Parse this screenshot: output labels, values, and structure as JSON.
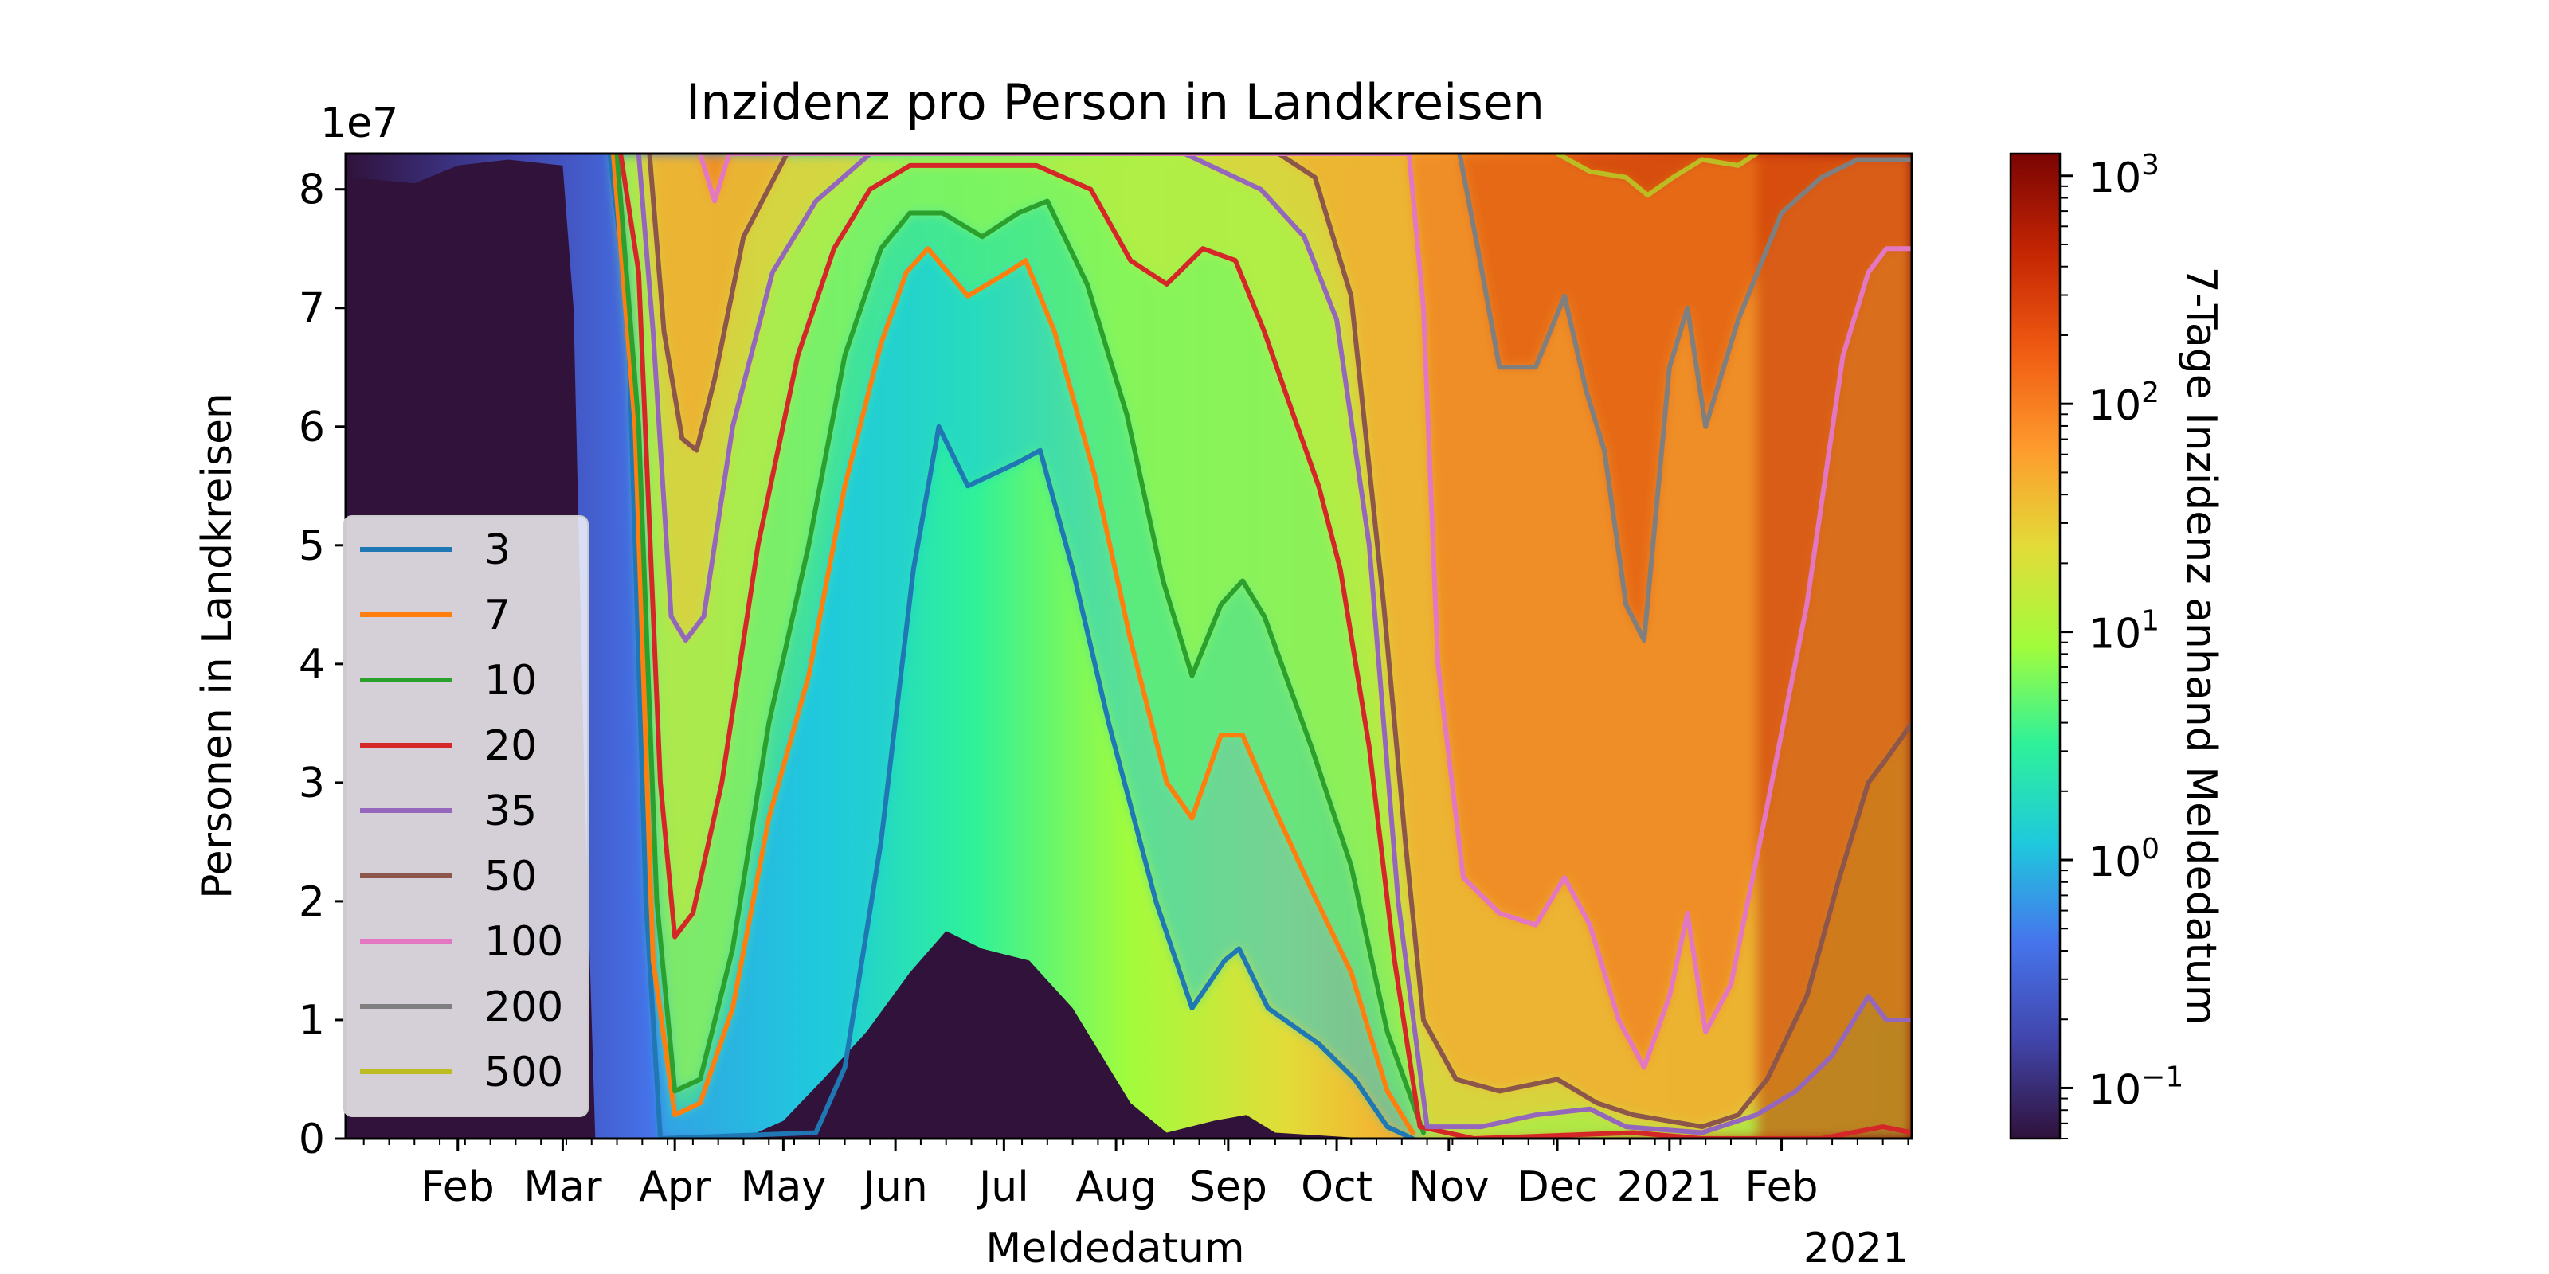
{
  "chart_data": {
    "type": "heatmap",
    "title": "Inzidenz pro Person in Landkreisen",
    "xlabel": "Meldedatum",
    "ylabel": "Personen in Landkreisen",
    "y_offset_text": "1e7",
    "x_year_label": "2021",
    "x_range": [
      "2020-01-01",
      "2021-03-09"
    ],
    "ylim": [
      0,
      8.3
    ],
    "y_ticks": [
      0,
      1,
      2,
      3,
      4,
      5,
      6,
      7,
      8
    ],
    "y_tick_labels": [
      "0",
      "1",
      "2",
      "3",
      "4",
      "5",
      "6",
      "7",
      "8"
    ],
    "x_ticks": [
      {
        "date": "2020-02-01",
        "label": "Feb"
      },
      {
        "date": "2020-03-01",
        "label": "Mar"
      },
      {
        "date": "2020-04-01",
        "label": "Apr"
      },
      {
        "date": "2020-05-01",
        "label": "May"
      },
      {
        "date": "2020-06-01",
        "label": "Jun"
      },
      {
        "date": "2020-07-01",
        "label": "Jul"
      },
      {
        "date": "2020-08-01",
        "label": "Aug"
      },
      {
        "date": "2020-09-01",
        "label": "Sep"
      },
      {
        "date": "2020-10-01",
        "label": "Oct"
      },
      {
        "date": "2020-11-01",
        "label": "Nov"
      },
      {
        "date": "2020-12-01",
        "label": "Dec"
      },
      {
        "date": "2021-01-01",
        "label": "2021"
      },
      {
        "date": "2021-02-01",
        "label": "Feb"
      }
    ],
    "colorbar": {
      "label": "7-Tage Inzidenz anhand Meldedatum",
      "scale": "log",
      "range": [
        0.06,
        1250
      ],
      "ticks": [
        {
          "value": 0.1,
          "base": "10",
          "exp": "−1"
        },
        {
          "value": 1,
          "base": "10",
          "exp": "0"
        },
        {
          "value": 10,
          "base": "10",
          "exp": "1"
        },
        {
          "value": 100,
          "base": "10",
          "exp": "2"
        },
        {
          "value": 1000,
          "base": "10",
          "exp": "3"
        }
      ],
      "colormap": "turbo"
    },
    "legend": {
      "placement": "center-left"
    },
    "series": [
      {
        "name": "3",
        "color": "#1f77b4",
        "values": [
          [
            [
              "2020-03-14",
              8.3
            ],
            [
              "2020-03-19",
              7.0
            ],
            [
              "2020-03-24",
              2.0
            ],
            [
              "2020-03-28",
              0.0
            ],
            [
              "2020-05-10",
              0.05
            ],
            [
              "2020-05-18",
              0.6
            ],
            [
              "2020-05-28",
              2.5
            ],
            [
              "2020-06-06",
              4.8
            ],
            [
              "2020-06-13",
              6.0
            ],
            [
              "2020-06-21",
              5.5
            ],
            [
              "2020-07-05",
              5.7
            ],
            [
              "2020-07-11",
              5.8
            ],
            [
              "2020-07-20",
              4.8
            ],
            [
              "2020-07-30",
              3.5
            ],
            [
              "2020-08-12",
              2.0
            ],
            [
              "2020-08-22",
              1.1
            ],
            [
              "2020-08-31",
              1.5
            ],
            [
              "2020-09-04",
              1.6
            ],
            [
              "2020-09-12",
              1.1
            ],
            [
              "2020-09-26",
              0.8
            ],
            [
              "2020-10-06",
              0.5
            ],
            [
              "2020-10-15",
              0.1
            ],
            [
              "2020-10-22",
              0.0
            ]
          ]
        ]
      },
      {
        "name": "7",
        "color": "#ff7f0e",
        "values": [
          [
            [
              "2020-03-15",
              8.3
            ],
            [
              "2020-03-21",
              6.0
            ],
            [
              "2020-03-26",
              1.5
            ],
            [
              "2020-04-01",
              0.2
            ],
            [
              "2020-04-08",
              0.3
            ],
            [
              "2020-04-17",
              1.1
            ],
            [
              "2020-04-27",
              2.7
            ],
            [
              "2020-05-08",
              3.9
            ],
            [
              "2020-05-18",
              5.5
            ],
            [
              "2020-05-28",
              6.7
            ],
            [
              "2020-06-04",
              7.3
            ],
            [
              "2020-06-10",
              7.5
            ],
            [
              "2020-06-21",
              7.1
            ],
            [
              "2020-07-02",
              7.3
            ],
            [
              "2020-07-07",
              7.4
            ],
            [
              "2020-07-15",
              6.8
            ],
            [
              "2020-07-26",
              5.6
            ],
            [
              "2020-08-05",
              4.2
            ],
            [
              "2020-08-15",
              3.0
            ],
            [
              "2020-08-22",
              2.7
            ],
            [
              "2020-08-30",
              3.4
            ],
            [
              "2020-09-05",
              3.4
            ],
            [
              "2020-09-12",
              2.9
            ],
            [
              "2020-09-24",
              2.1
            ],
            [
              "2020-10-05",
              1.4
            ],
            [
              "2020-10-15",
              0.4
            ],
            [
              "2020-10-22",
              0.05
            ]
          ]
        ]
      },
      {
        "name": "10",
        "color": "#2ca02c",
        "values": [
          [
            [
              "2020-03-16",
              8.3
            ],
            [
              "2020-03-22",
              6.0
            ],
            [
              "2020-03-27",
              2.0
            ],
            [
              "2020-04-01",
              0.4
            ],
            [
              "2020-04-08",
              0.5
            ],
            [
              "2020-04-17",
              1.6
            ],
            [
              "2020-04-27",
              3.5
            ],
            [
              "2020-05-08",
              5.0
            ],
            [
              "2020-05-18",
              6.6
            ],
            [
              "2020-05-28",
              7.5
            ],
            [
              "2020-06-05",
              7.8
            ],
            [
              "2020-06-14",
              7.8
            ],
            [
              "2020-06-25",
              7.6
            ],
            [
              "2020-07-05",
              7.8
            ],
            [
              "2020-07-13",
              7.9
            ],
            [
              "2020-07-24",
              7.2
            ],
            [
              "2020-08-04",
              6.1
            ],
            [
              "2020-08-14",
              4.7
            ],
            [
              "2020-08-22",
              3.9
            ],
            [
              "2020-08-30",
              4.5
            ],
            [
              "2020-09-05",
              4.7
            ],
            [
              "2020-09-11",
              4.4
            ],
            [
              "2020-09-24",
              3.3
            ],
            [
              "2020-10-05",
              2.3
            ],
            [
              "2020-10-15",
              0.9
            ],
            [
              "2020-10-25",
              0.05
            ]
          ]
        ]
      },
      {
        "name": "20",
        "color": "#d62728",
        "values": [
          [
            [
              "2020-03-17",
              8.3
            ],
            [
              "2020-03-22",
              7.3
            ],
            [
              "2020-03-28",
              3.0
            ],
            [
              "2020-04-01",
              1.7
            ],
            [
              "2020-04-06",
              1.9
            ],
            [
              "2020-04-14",
              3.0
            ],
            [
              "2020-04-24",
              5.0
            ],
            [
              "2020-05-05",
              6.6
            ],
            [
              "2020-05-15",
              7.5
            ],
            [
              "2020-05-25",
              8.0
            ],
            [
              "2020-06-05",
              8.2
            ],
            [
              "2020-06-20",
              8.2
            ],
            [
              "2020-07-10",
              8.2
            ],
            [
              "2020-07-25",
              8.0
            ],
            [
              "2020-08-05",
              7.4
            ],
            [
              "2020-08-15",
              7.2
            ],
            [
              "2020-08-25",
              7.5
            ],
            [
              "2020-09-03",
              7.4
            ],
            [
              "2020-09-11",
              6.8
            ],
            [
              "2020-09-19",
              6.1
            ],
            [
              "2020-09-26",
              5.5
            ],
            [
              "2020-10-02",
              4.8
            ],
            [
              "2020-10-10",
              3.3
            ],
            [
              "2020-10-17",
              1.5
            ],
            [
              "2020-10-24",
              0.1
            ],
            [
              "2020-11-08",
              0.0
            ],
            [
              "2020-12-22",
              0.05
            ],
            [
              "2021-01-10",
              0.0
            ],
            [
              "2021-02-12",
              0.0
            ],
            [
              "2021-03-01",
              0.1
            ],
            [
              "2021-03-09",
              0.05
            ]
          ]
        ]
      },
      {
        "name": "35",
        "color": "#9467bd",
        "values": [
          [
            [
              "2020-03-22",
              8.3
            ],
            [
              "2020-03-26",
              6.8
            ],
            [
              "2020-03-31",
              4.4
            ],
            [
              "2020-04-04",
              4.2
            ],
            [
              "2020-04-09",
              4.4
            ],
            [
              "2020-04-17",
              6.0
            ],
            [
              "2020-04-28",
              7.3
            ],
            [
              "2020-05-10",
              7.9
            ],
            [
              "2020-05-25",
              8.3
            ],
            [
              "2020-07-15",
              8.3
            ],
            [
              "2020-08-20",
              8.3
            ],
            [
              "2020-09-10",
              8.0
            ],
            [
              "2020-09-22",
              7.6
            ],
            [
              "2020-10-01",
              6.9
            ],
            [
              "2020-10-10",
              5.0
            ],
            [
              "2020-10-18",
              2.0
            ],
            [
              "2020-10-26",
              0.1
            ],
            [
              "2020-11-10",
              0.1
            ],
            [
              "2020-11-25",
              0.2
            ],
            [
              "2020-12-10",
              0.25
            ],
            [
              "2020-12-20",
              0.1
            ],
            [
              "2021-01-10",
              0.05
            ],
            [
              "2021-01-25",
              0.2
            ],
            [
              "2021-02-05",
              0.4
            ],
            [
              "2021-02-15",
              0.7
            ],
            [
              "2021-02-25",
              1.2
            ],
            [
              "2021-03-02",
              1.0
            ],
            [
              "2021-03-09",
              1.0
            ]
          ]
        ]
      },
      {
        "name": "50",
        "color": "#8c564b",
        "values": [
          [
            [
              "2020-03-25",
              8.3
            ],
            [
              "2020-03-29",
              6.8
            ],
            [
              "2020-04-03",
              5.9
            ],
            [
              "2020-04-07",
              5.8
            ],
            [
              "2020-04-12",
              6.4
            ],
            [
              "2020-04-20",
              7.6
            ],
            [
              "2020-05-02",
              8.3
            ],
            [
              "2020-09-15",
              8.3
            ],
            [
              "2020-09-25",
              8.1
            ],
            [
              "2020-10-05",
              7.1
            ],
            [
              "2020-10-14",
              4.5
            ],
            [
              "2020-10-20",
              2.5
            ],
            [
              "2020-10-25",
              1.0
            ],
            [
              "2020-11-03",
              0.5
            ],
            [
              "2020-11-15",
              0.4
            ],
            [
              "2020-12-01",
              0.5
            ],
            [
              "2020-12-12",
              0.3
            ],
            [
              "2020-12-22",
              0.2
            ],
            [
              "2021-01-10",
              0.1
            ],
            [
              "2021-01-20",
              0.2
            ],
            [
              "2021-01-28",
              0.5
            ],
            [
              "2021-02-08",
              1.2
            ],
            [
              "2021-02-17",
              2.2
            ],
            [
              "2021-02-25",
              3.0
            ],
            [
              "2021-03-02",
              3.2
            ],
            [
              "2021-03-09",
              3.5
            ]
          ]
        ]
      },
      {
        "name": "100",
        "color": "#e377c2",
        "values": [
          [
            [
              "2020-04-08",
              8.3
            ],
            [
              "2020-04-12",
              7.9
            ],
            [
              "2020-04-16",
              8.3
            ],
            [
              "2020-10-21",
              8.3
            ],
            [
              "2020-10-25",
              7.0
            ],
            [
              "2020-10-29",
              4.0
            ],
            [
              "2020-11-05",
              2.2
            ],
            [
              "2020-11-15",
              1.9
            ],
            [
              "2020-11-25",
              1.8
            ],
            [
              "2020-12-03",
              2.2
            ],
            [
              "2020-12-10",
              1.8
            ],
            [
              "2020-12-18",
              1.0
            ],
            [
              "2020-12-25",
              0.6
            ],
            [
              "2021-01-01",
              1.2
            ],
            [
              "2021-01-06",
              1.9
            ],
            [
              "2021-01-11",
              0.9
            ],
            [
              "2021-01-18",
              1.3
            ],
            [
              "2021-01-28",
              2.8
            ],
            [
              "2021-02-08",
              4.5
            ],
            [
              "2021-02-18",
              6.6
            ],
            [
              "2021-02-25",
              7.3
            ],
            [
              "2021-03-02",
              7.5
            ],
            [
              "2021-03-09",
              7.5
            ]
          ]
        ]
      },
      {
        "name": "200",
        "color": "#7f7f7f",
        "values": [
          [
            [
              "2020-11-04",
              8.3
            ],
            [
              "2020-11-09",
              7.5
            ],
            [
              "2020-11-15",
              6.5
            ],
            [
              "2020-11-25",
              6.5
            ],
            [
              "2020-12-03",
              7.1
            ],
            [
              "2020-12-09",
              6.3
            ],
            [
              "2020-12-14",
              5.8
            ],
            [
              "2020-12-20",
              4.5
            ],
            [
              "2020-12-25",
              4.2
            ],
            [
              "2021-01-01",
              6.5
            ],
            [
              "2021-01-06",
              7.0
            ],
            [
              "2021-01-11",
              6.0
            ],
            [
              "2021-01-20",
              6.9
            ],
            [
              "2021-02-01",
              7.8
            ],
            [
              "2021-02-12",
              8.1
            ],
            [
              "2021-02-22",
              8.25
            ],
            [
              "2021-03-09",
              8.25
            ]
          ]
        ]
      },
      {
        "name": "500",
        "color": "#bcbd22",
        "values": [
          [
            [
              "2020-12-01",
              8.3
            ],
            [
              "2020-12-10",
              8.15
            ],
            [
              "2020-12-20",
              8.1
            ],
            [
              "2020-12-26",
              7.95
            ],
            [
              "2021-01-02",
              8.1
            ],
            [
              "2021-01-10",
              8.25
            ],
            [
              "2021-01-20",
              8.2
            ],
            [
              "2021-01-25",
              8.3
            ]
          ]
        ]
      }
    ]
  }
}
